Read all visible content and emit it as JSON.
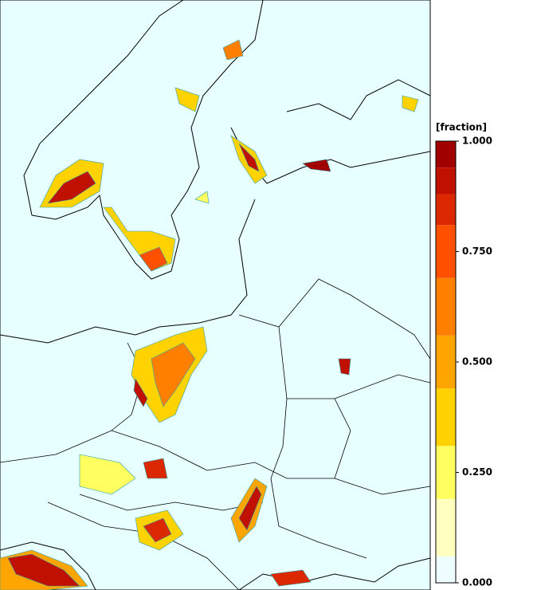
{
  "colorbar": {
    "title": "[fraction]",
    "lim": [
      0,
      1
    ],
    "levels": [
      0,
      0.06,
      0.19,
      0.31,
      0.44,
      0.56,
      0.69,
      0.81,
      0.88,
      0.94,
      1
    ],
    "colors": [
      "#eefdff",
      "#ffffc0",
      "#ffff60",
      "#ffd200",
      "#ffa500",
      "#ff8000",
      "#ff5000",
      "#dc2800",
      "#c01000",
      "#a00000"
    ],
    "ticks": [
      {
        "value": 1,
        "label": "1.000"
      },
      {
        "value": 0.75,
        "label": "0.750"
      },
      {
        "value": 0.5,
        "label": "0.500"
      },
      {
        "value": 0.25,
        "label": "0.250"
      },
      {
        "value": 0,
        "label": "0.000"
      }
    ]
  }
}
